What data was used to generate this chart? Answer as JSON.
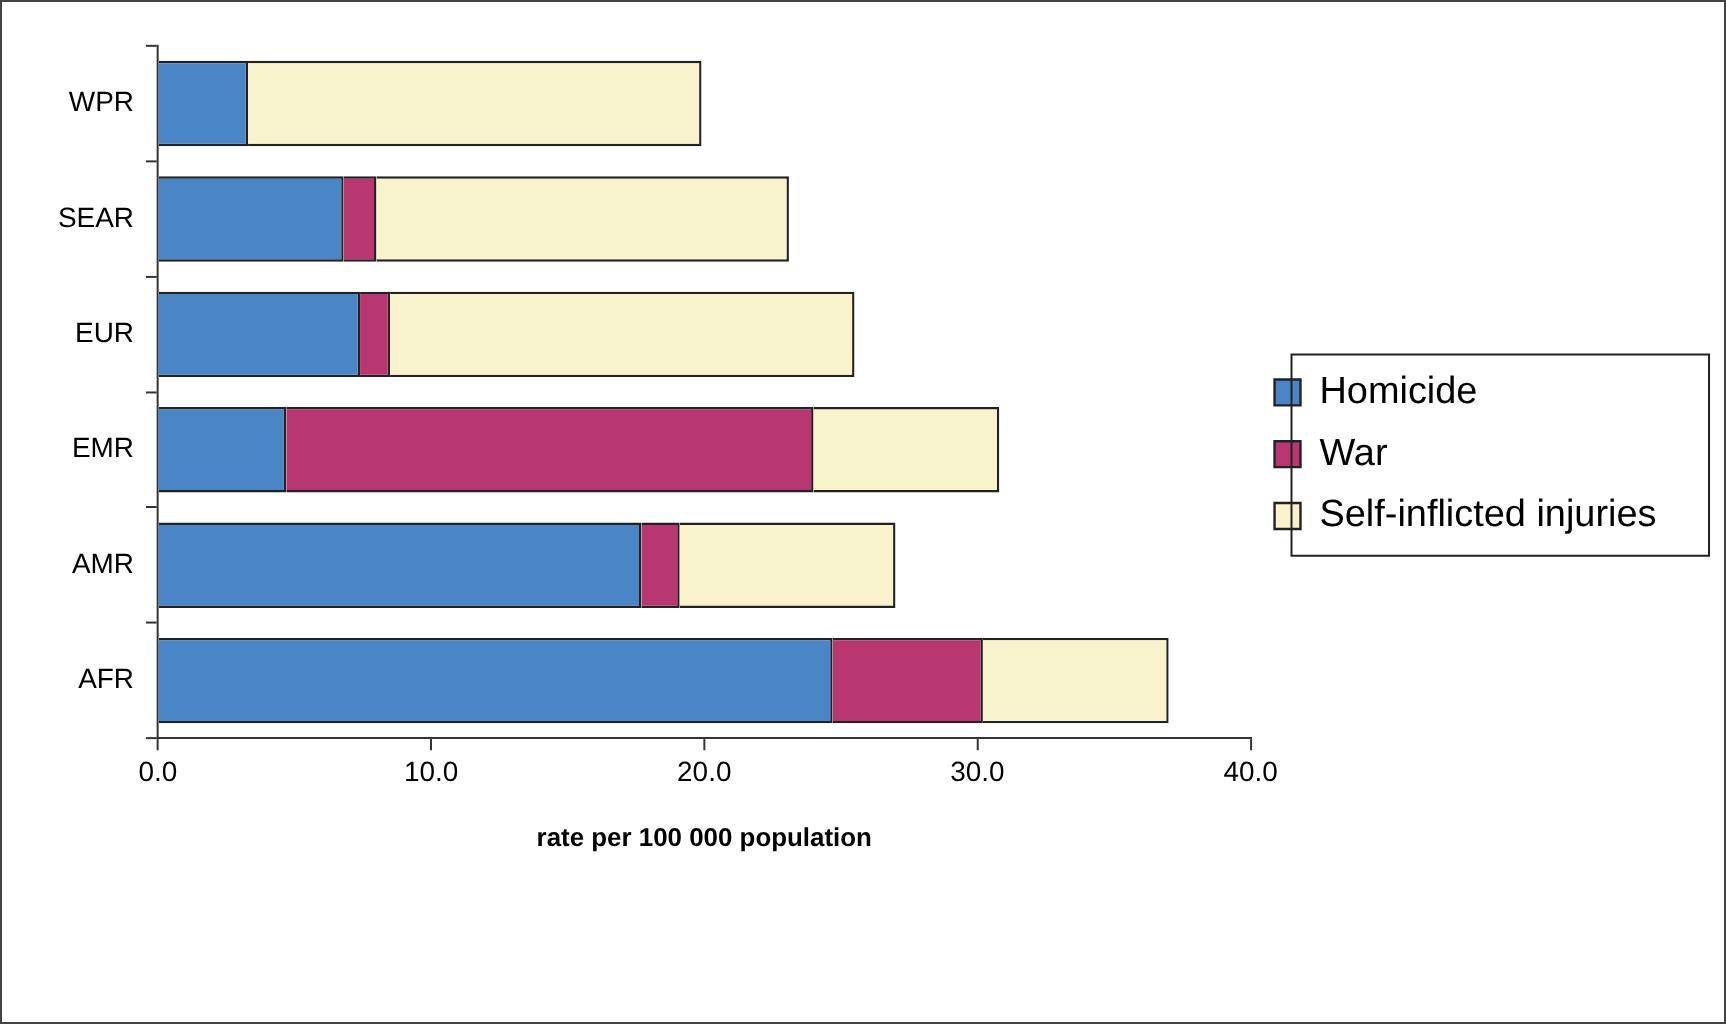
{
  "chart_data": {
    "type": "bar",
    "orientation": "horizontal",
    "stacked": true,
    "xlabel": "rate per 100 000 population",
    "categories": [
      "WPR",
      "SEAR",
      "EUR",
      "EMR",
      "AMR",
      "AFR"
    ],
    "series": [
      {
        "name": "Homicide",
        "color": "#4a86c5",
        "values": [
          3.3,
          6.8,
          7.4,
          4.7,
          17.7,
          24.7
        ]
      },
      {
        "name": "War",
        "color": "#b83770",
        "values": [
          0,
          1.2,
          1.1,
          19.3,
          1.4,
          5.5
        ]
      },
      {
        "name": "Self-inflicted injuries",
        "color": "#f8f3cd",
        "values": [
          16.6,
          15.1,
          17.0,
          6.8,
          7.9,
          6.8
        ]
      }
    ],
    "xlim": [
      0,
      40
    ],
    "xticks": [
      {
        "value": 0,
        "label": "0.0"
      },
      {
        "value": 10,
        "label": "10.0"
      },
      {
        "value": 20,
        "label": "20.0"
      },
      {
        "value": 30,
        "label": "30.0"
      },
      {
        "value": 40,
        "label": "40.0"
      }
    ],
    "grid": false,
    "legend": "right"
  }
}
